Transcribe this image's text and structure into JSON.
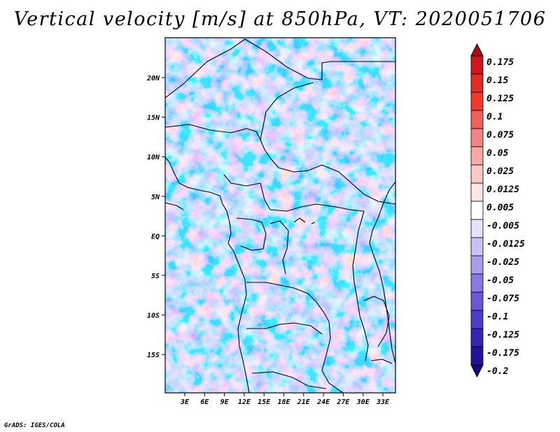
{
  "title": "Vertical velocity [m/s] at 850hPa, VT: 2020051706",
  "credit": "GrADS: IGES/COLA",
  "map": {
    "lon_ticks": [
      "3E",
      "6E",
      "9E",
      "12E",
      "15E",
      "18E",
      "21E",
      "24E",
      "27E",
      "30E",
      "33E"
    ],
    "lat_ticks": [
      "20N",
      "15N",
      "10N",
      "5N",
      "EQ",
      "5S",
      "10S",
      "15S"
    ],
    "lon_range": [
      0,
      35
    ],
    "lat_range": [
      -20,
      25
    ]
  },
  "colorbar": {
    "labels": [
      "0.175",
      "0.15",
      "0.125",
      "0.1",
      "0.075",
      "0.05",
      "0.025",
      "0.0125",
      "0.005",
      "-0.005",
      "-0.0125",
      "-0.025",
      "-0.05",
      "-0.075",
      "-0.1",
      "-0.125",
      "-0.175",
      "-0.2"
    ],
    "colors": [
      "#a50f15",
      "#cb181d",
      "#de2d26",
      "#ef3b2c",
      "#f0605a",
      "#f28584",
      "#f6a8a5",
      "#f9c9c6",
      "#fce6e4",
      "#ffffff",
      "#e4e2fb",
      "#c7c3f5",
      "#a59eed",
      "#8579e2",
      "#6658d6",
      "#4b3ec7",
      "#3226b3",
      "#1f139b",
      "#140a7c"
    ]
  }
}
